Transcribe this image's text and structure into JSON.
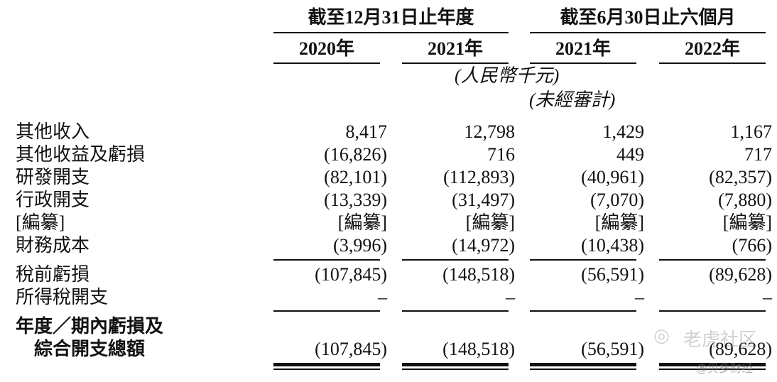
{
  "header": {
    "period_year": "截至12月31日止年度",
    "period_half": "截至6月30日止六個月",
    "years": [
      "2020年",
      "2021年",
      "2021年",
      "2022年"
    ],
    "currency_note": "(人民幣千元)",
    "unaudited_note": "(未經審計)"
  },
  "rows": [
    {
      "label": "其他收入",
      "values": [
        "8,417",
        "12,798",
        "1,429",
        "1,167"
      ]
    },
    {
      "label": "其他收益及虧損",
      "values": [
        "(16,826)",
        "716",
        "449",
        "717"
      ]
    },
    {
      "label": "研發開支",
      "values": [
        "(82,101)",
        "(112,893)",
        "(40,961)",
        "(82,357)"
      ]
    },
    {
      "label": "行政開支",
      "values": [
        "(13,339)",
        "(31,497)",
        "(7,070)",
        "(7,880)"
      ]
    },
    {
      "label": "[編纂]",
      "values": [
        "[編纂]",
        "[編纂]",
        "[編纂]",
        "[編纂]"
      ]
    },
    {
      "label": "財務成本",
      "values": [
        "(3,996)",
        "(14,972)",
        "(10,438)",
        "(766)"
      ]
    },
    {
      "label": "稅前虧損",
      "values": [
        "(107,845)",
        "(148,518)",
        "(56,591)",
        "(89,628)"
      ]
    },
    {
      "label": "所得稅開支",
      "values": [
        "–",
        "–",
        "–",
        "–"
      ]
    }
  ],
  "total": {
    "label_line1": "年度／期內虧損及",
    "label_line2": "綜合開支總額",
    "values": [
      "(107,845)",
      "(148,518)",
      "(56,591)",
      "(89,628)"
    ]
  },
  "watermarks": {
    "top": "老虎社区",
    "bottom": "@贝多财经"
  }
}
